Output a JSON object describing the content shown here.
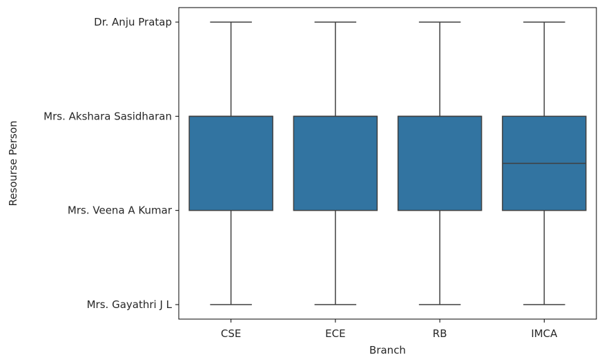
{
  "chart_data": {
    "type": "box",
    "title": "",
    "xlabel": "Branch",
    "ylabel": "Resourse Person",
    "categories": [
      "CSE",
      "ECE",
      "RB",
      "IMCA"
    ],
    "y_categories": [
      "Dr. Anju Pratap",
      "Mrs. Akshara Sasidharan",
      "Mrs. Veena A Kumar",
      "Mrs. Gayathri J L"
    ],
    "y_positions": [
      0,
      1,
      2,
      3
    ],
    "y_inverted": true,
    "boxes": [
      {
        "category": "CSE",
        "whisker_low": 0,
        "q1": 1,
        "median": 1,
        "q3": 2,
        "whisker_high": 3
      },
      {
        "category": "ECE",
        "whisker_low": 0,
        "q1": 1,
        "median": 1,
        "q3": 2,
        "whisker_high": 3
      },
      {
        "category": "RB",
        "whisker_low": 0,
        "q1": 1,
        "median": 1,
        "q3": 2,
        "whisker_high": 3
      },
      {
        "category": "IMCA",
        "whisker_low": 0,
        "q1": 1,
        "median": 1.5,
        "q3": 2,
        "whisker_high": 3
      }
    ],
    "box_color": "#3274a1",
    "line_color": "#3f3f3f",
    "grid": false,
    "legend": "none"
  }
}
